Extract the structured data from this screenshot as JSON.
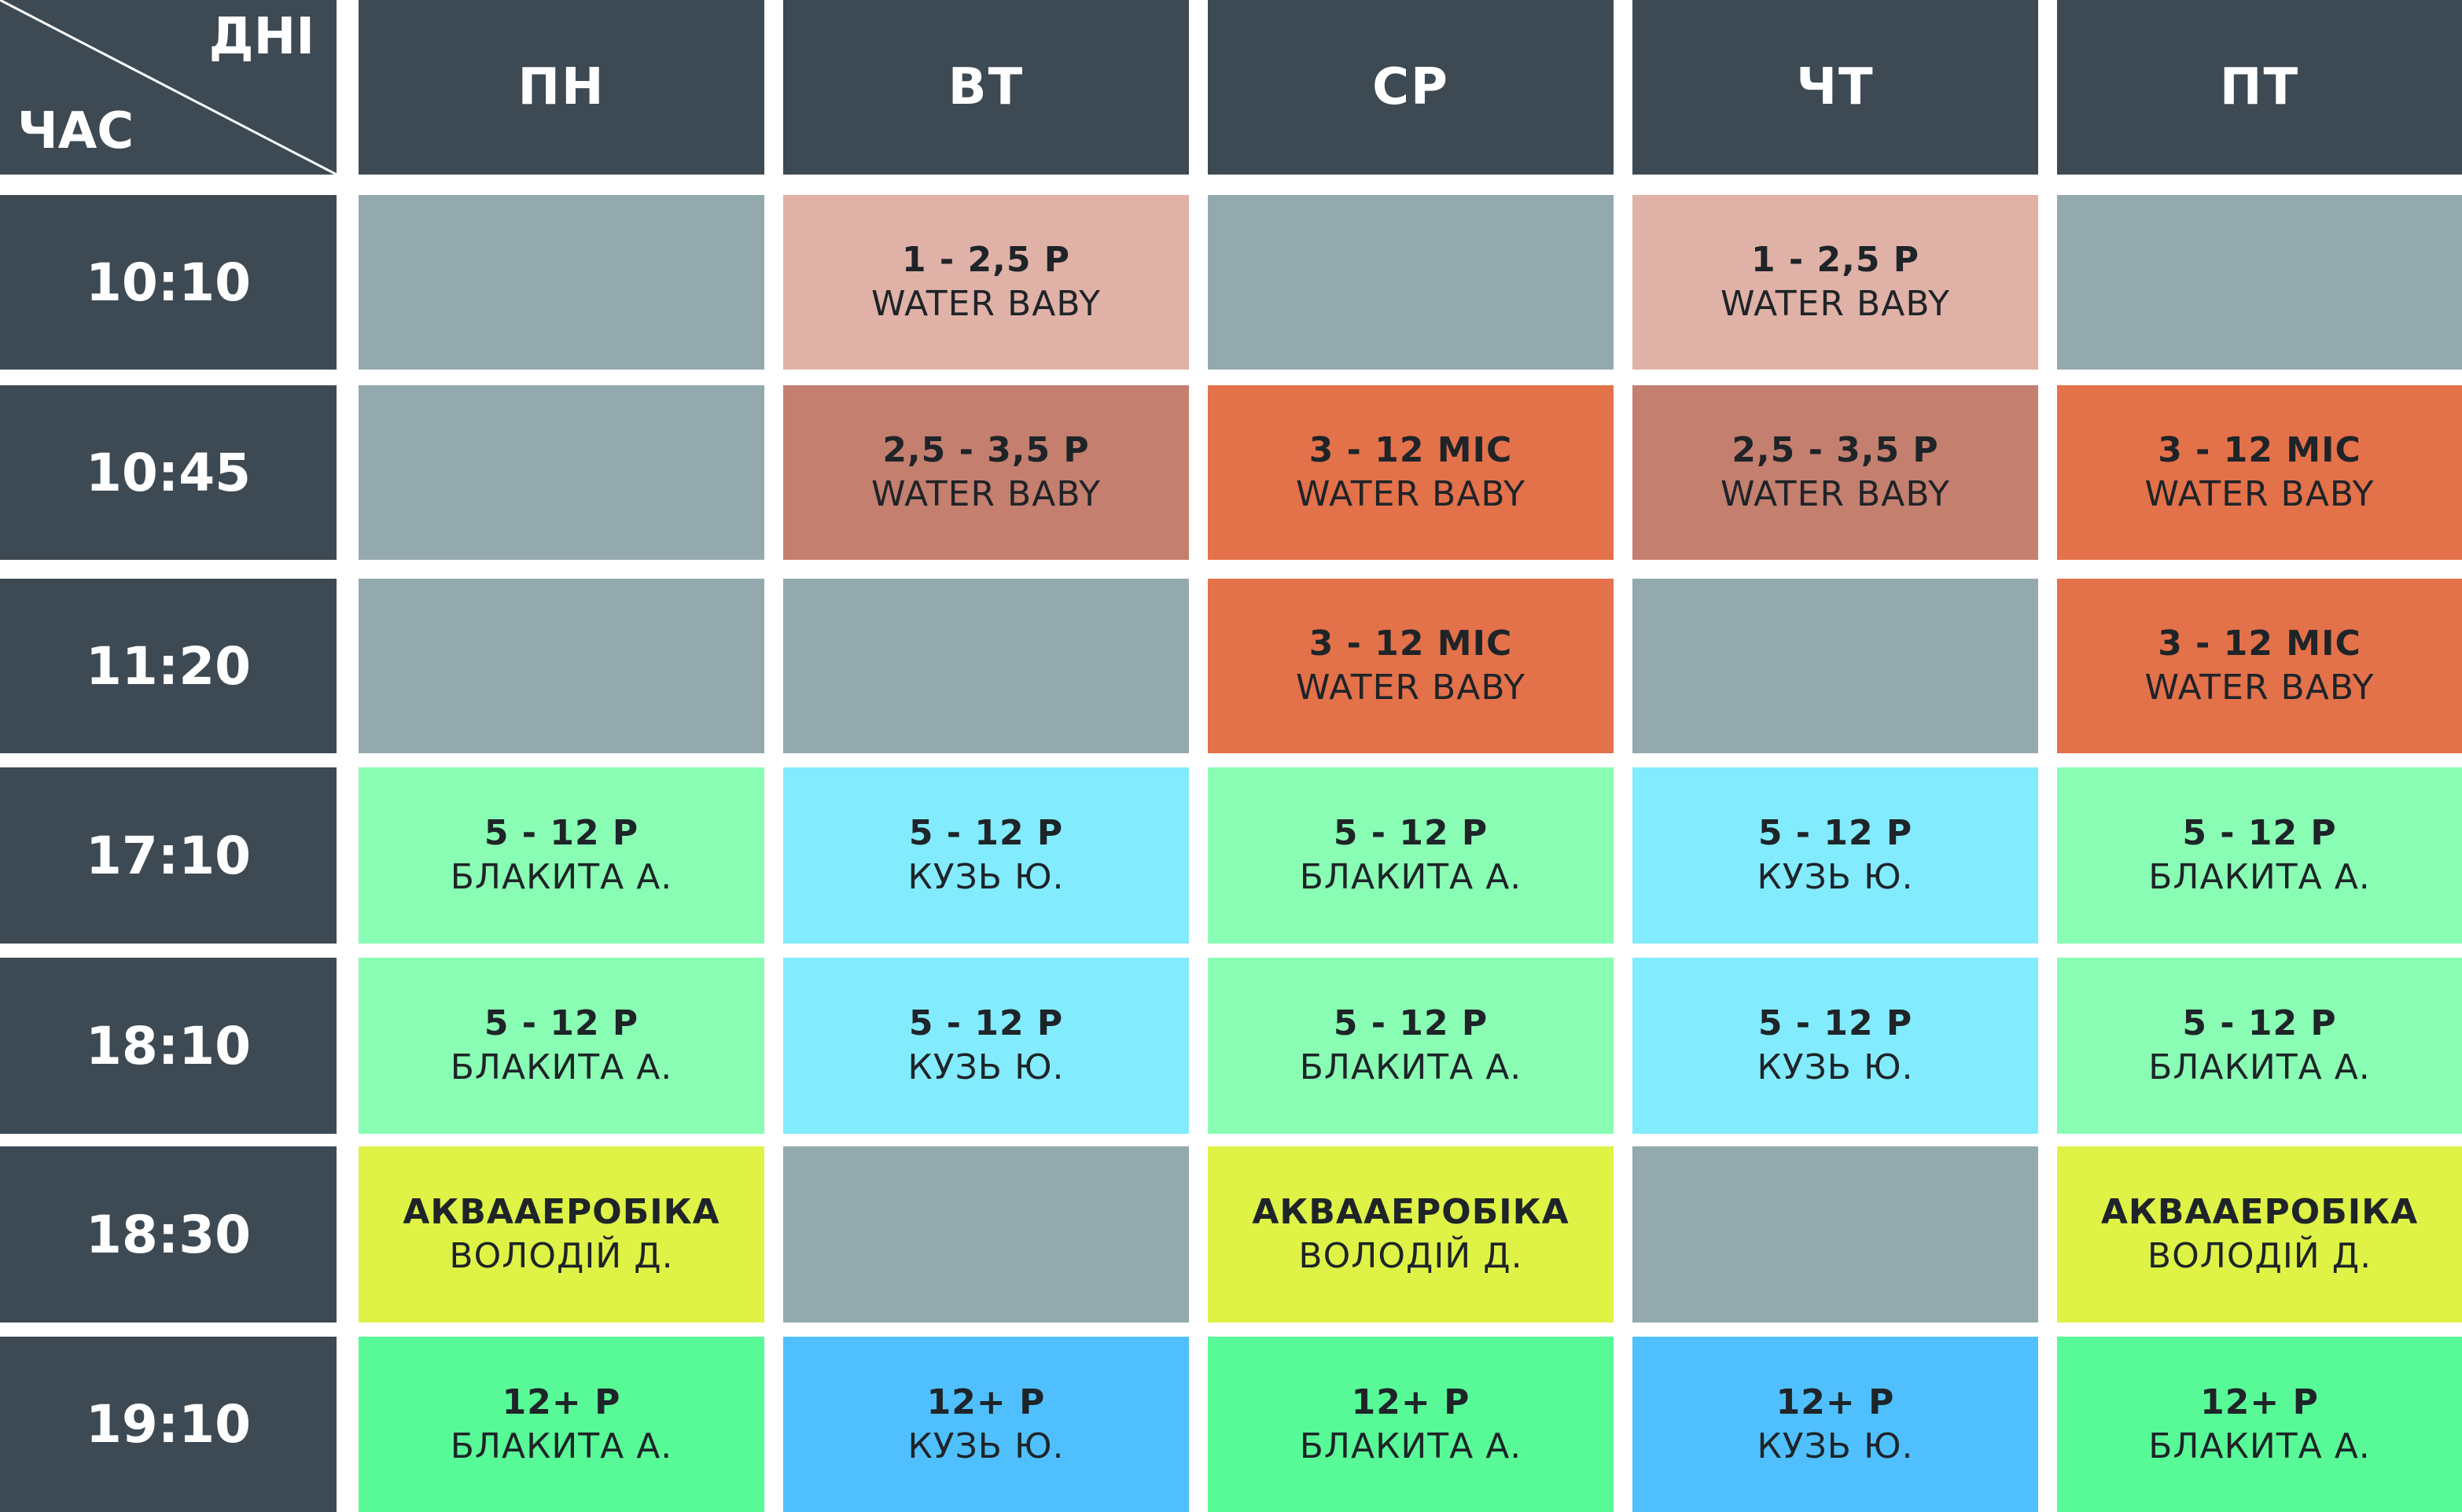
{
  "corner": {
    "days_label": "ДНІ",
    "time_label": "ЧАС"
  },
  "days": [
    "ПН",
    "ВТ",
    "СР",
    "ЧТ",
    "ПТ"
  ],
  "times": [
    "10:10",
    "10:45",
    "11:20",
    "17:10",
    "18:10",
    "18:30",
    "19:10"
  ],
  "colors": {
    "header": "#3d4a54",
    "empty": "#93a9ae",
    "water_baby_young": "#e0b1a7",
    "water_baby_older": "#c47f6f",
    "water_baby_infant": "#e3714a",
    "blakyta": "#88fdb3",
    "kuz": "#82ebfd",
    "aerobics": "#dff347",
    "teen_blakyta": "#58fa97",
    "teen_kuz": "#4fc0fd"
  },
  "schedule": [
    [
      {
        "line1": "",
        "line2": "",
        "color_key": "empty"
      },
      {
        "line1": "1 - 2,5 Р",
        "line2": "WATER BABY",
        "color_key": "water_baby_young"
      },
      {
        "line1": "",
        "line2": "",
        "color_key": "empty"
      },
      {
        "line1": "1 - 2,5 Р",
        "line2": "WATER BABY",
        "color_key": "water_baby_young"
      },
      {
        "line1": "",
        "line2": "",
        "color_key": "empty"
      }
    ],
    [
      {
        "line1": "",
        "line2": "",
        "color_key": "empty"
      },
      {
        "line1": "2,5 - 3,5 Р",
        "line2": "WATER BABY",
        "color_key": "water_baby_older"
      },
      {
        "line1": "3 - 12 МІС",
        "line2": "WATER BABY",
        "color_key": "water_baby_infant"
      },
      {
        "line1": "2,5 - 3,5 Р",
        "line2": "WATER BABY",
        "color_key": "water_baby_older"
      },
      {
        "line1": "3 - 12 МІС",
        "line2": "WATER BABY",
        "color_key": "water_baby_infant"
      }
    ],
    [
      {
        "line1": "",
        "line2": "",
        "color_key": "empty"
      },
      {
        "line1": "",
        "line2": "",
        "color_key": "empty"
      },
      {
        "line1": "3 - 12 МІС",
        "line2": "WATER BABY",
        "color_key": "water_baby_infant"
      },
      {
        "line1": "",
        "line2": "",
        "color_key": "empty"
      },
      {
        "line1": "3 - 12 МІС",
        "line2": "WATER BABY",
        "color_key": "water_baby_infant"
      }
    ],
    [
      {
        "line1": "5 - 12 Р",
        "line2": "БЛАКИТА А.",
        "color_key": "blakyta"
      },
      {
        "line1": "5 - 12 Р",
        "line2": "КУЗЬ Ю.",
        "color_key": "kuz"
      },
      {
        "line1": "5 - 12 Р",
        "line2": "БЛАКИТА А.",
        "color_key": "blakyta"
      },
      {
        "line1": "5 - 12 Р",
        "line2": "КУЗЬ Ю.",
        "color_key": "kuz"
      },
      {
        "line1": "5 - 12 Р",
        "line2": "БЛАКИТА А.",
        "color_key": "blakyta"
      }
    ],
    [
      {
        "line1": "5 - 12 Р",
        "line2": "БЛАКИТА А.",
        "color_key": "blakyta"
      },
      {
        "line1": "5 - 12 Р",
        "line2": "КУЗЬ Ю.",
        "color_key": "kuz"
      },
      {
        "line1": "5 - 12 Р",
        "line2": "БЛАКИТА А.",
        "color_key": "blakyta"
      },
      {
        "line1": "5 - 12 Р",
        "line2": "КУЗЬ Ю.",
        "color_key": "kuz"
      },
      {
        "line1": "5 - 12 Р",
        "line2": "БЛАКИТА А.",
        "color_key": "blakyta"
      }
    ],
    [
      {
        "line1": "АКВААЕРОБІКА",
        "line2": "ВОЛОДІЙ Д.",
        "color_key": "aerobics"
      },
      {
        "line1": "",
        "line2": "",
        "color_key": "empty"
      },
      {
        "line1": "АКВААЕРОБІКА",
        "line2": "ВОЛОДІЙ Д.",
        "color_key": "aerobics"
      },
      {
        "line1": "",
        "line2": "",
        "color_key": "empty"
      },
      {
        "line1": "АКВААЕРОБІКА",
        "line2": "ВОЛОДІЙ Д.",
        "color_key": "aerobics"
      }
    ],
    [
      {
        "line1": "12+ Р",
        "line2": "БЛАКИТА А.",
        "color_key": "teen_blakyta"
      },
      {
        "line1": "12+ Р",
        "line2": "КУЗЬ Ю.",
        "color_key": "teen_kuz"
      },
      {
        "line1": "12+ Р",
        "line2": "БЛАКИТА А.",
        "color_key": "teen_blakyta"
      },
      {
        "line1": "12+ Р",
        "line2": "КУЗЬ Ю.",
        "color_key": "teen_kuz"
      },
      {
        "line1": "12+ Р",
        "line2": "БЛАКИТА А.",
        "color_key": "teen_blakyta"
      }
    ]
  ]
}
